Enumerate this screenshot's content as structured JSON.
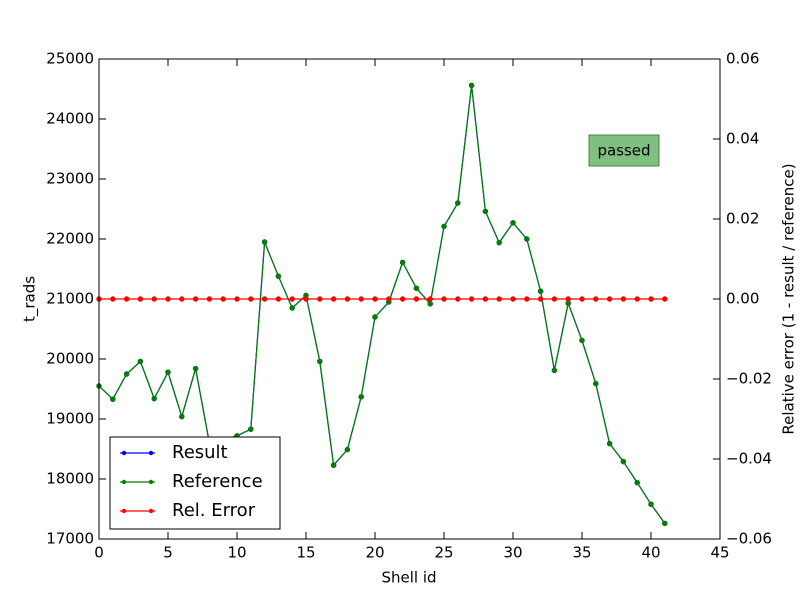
{
  "chart_data": {
    "type": "line",
    "xlabel": "Shell id",
    "ylabel": "t_rads",
    "y2label": "Relative error (1 - result / reference)",
    "annotation": "passed",
    "x": [
      0,
      1,
      2,
      3,
      4,
      5,
      6,
      7,
      8,
      9,
      10,
      11,
      12,
      13,
      14,
      15,
      16,
      17,
      18,
      19,
      20,
      21,
      22,
      23,
      24,
      25,
      26,
      27,
      28,
      29,
      30,
      31,
      32,
      33,
      34,
      35,
      36,
      37,
      38,
      39,
      40,
      41
    ],
    "series": [
      {
        "name": "Result",
        "color": "#0000ff",
        "values": [
          19550,
          19330,
          19750,
          19960,
          19340,
          19780,
          19040,
          19840,
          18600,
          18650,
          18720,
          18830,
          21950,
          21380,
          20850,
          21060,
          19960,
          18230,
          18490,
          19370,
          20700,
          20950,
          21610,
          21180,
          20920,
          22210,
          22600,
          24560,
          22460,
          21940,
          22270,
          22000,
          21130,
          19810,
          20930,
          20310,
          19590,
          18590,
          18290,
          17940,
          17580,
          17260
        ]
      },
      {
        "name": "Reference",
        "color": "#007f00",
        "values": [
          19550,
          19330,
          19750,
          19960,
          19340,
          19780,
          19040,
          19840,
          18600,
          18650,
          18720,
          18830,
          21950,
          21380,
          20850,
          21060,
          19960,
          18230,
          18490,
          19370,
          20700,
          20950,
          21610,
          21180,
          20920,
          22210,
          22600,
          24560,
          22460,
          21940,
          22270,
          22000,
          21130,
          19810,
          20930,
          20310,
          19590,
          18590,
          18290,
          17940,
          17580,
          17260
        ]
      },
      {
        "name": "Rel. Error",
        "color": "#ff0000",
        "axis": "y2",
        "values": [
          0,
          0,
          0,
          0,
          0,
          0,
          0,
          0,
          0,
          0,
          0,
          0,
          0,
          0,
          0,
          0,
          0,
          0,
          0,
          0,
          0,
          0,
          0,
          0,
          0,
          0,
          0,
          0,
          0,
          0,
          0,
          0,
          0,
          0,
          0,
          0,
          0,
          0,
          0,
          0,
          0,
          0
        ]
      }
    ],
    "xlim": [
      0,
      45
    ],
    "xticks": [
      0,
      5,
      10,
      15,
      20,
      25,
      30,
      35,
      40,
      45
    ],
    "ylim": [
      17000,
      25000
    ],
    "yticks": [
      17000,
      18000,
      19000,
      20000,
      21000,
      22000,
      23000,
      24000,
      25000
    ],
    "y2lim": [
      -0.06,
      0.06
    ],
    "y2ticks": [
      {
        "value": -0.06,
        "label": "−0.06"
      },
      {
        "value": -0.04,
        "label": "−0.04"
      },
      {
        "value": -0.02,
        "label": "−0.02"
      },
      {
        "value": 0,
        "label": "0.00"
      },
      0.02,
      0.04,
      0.06
    ],
    "legend": "lower left"
  }
}
